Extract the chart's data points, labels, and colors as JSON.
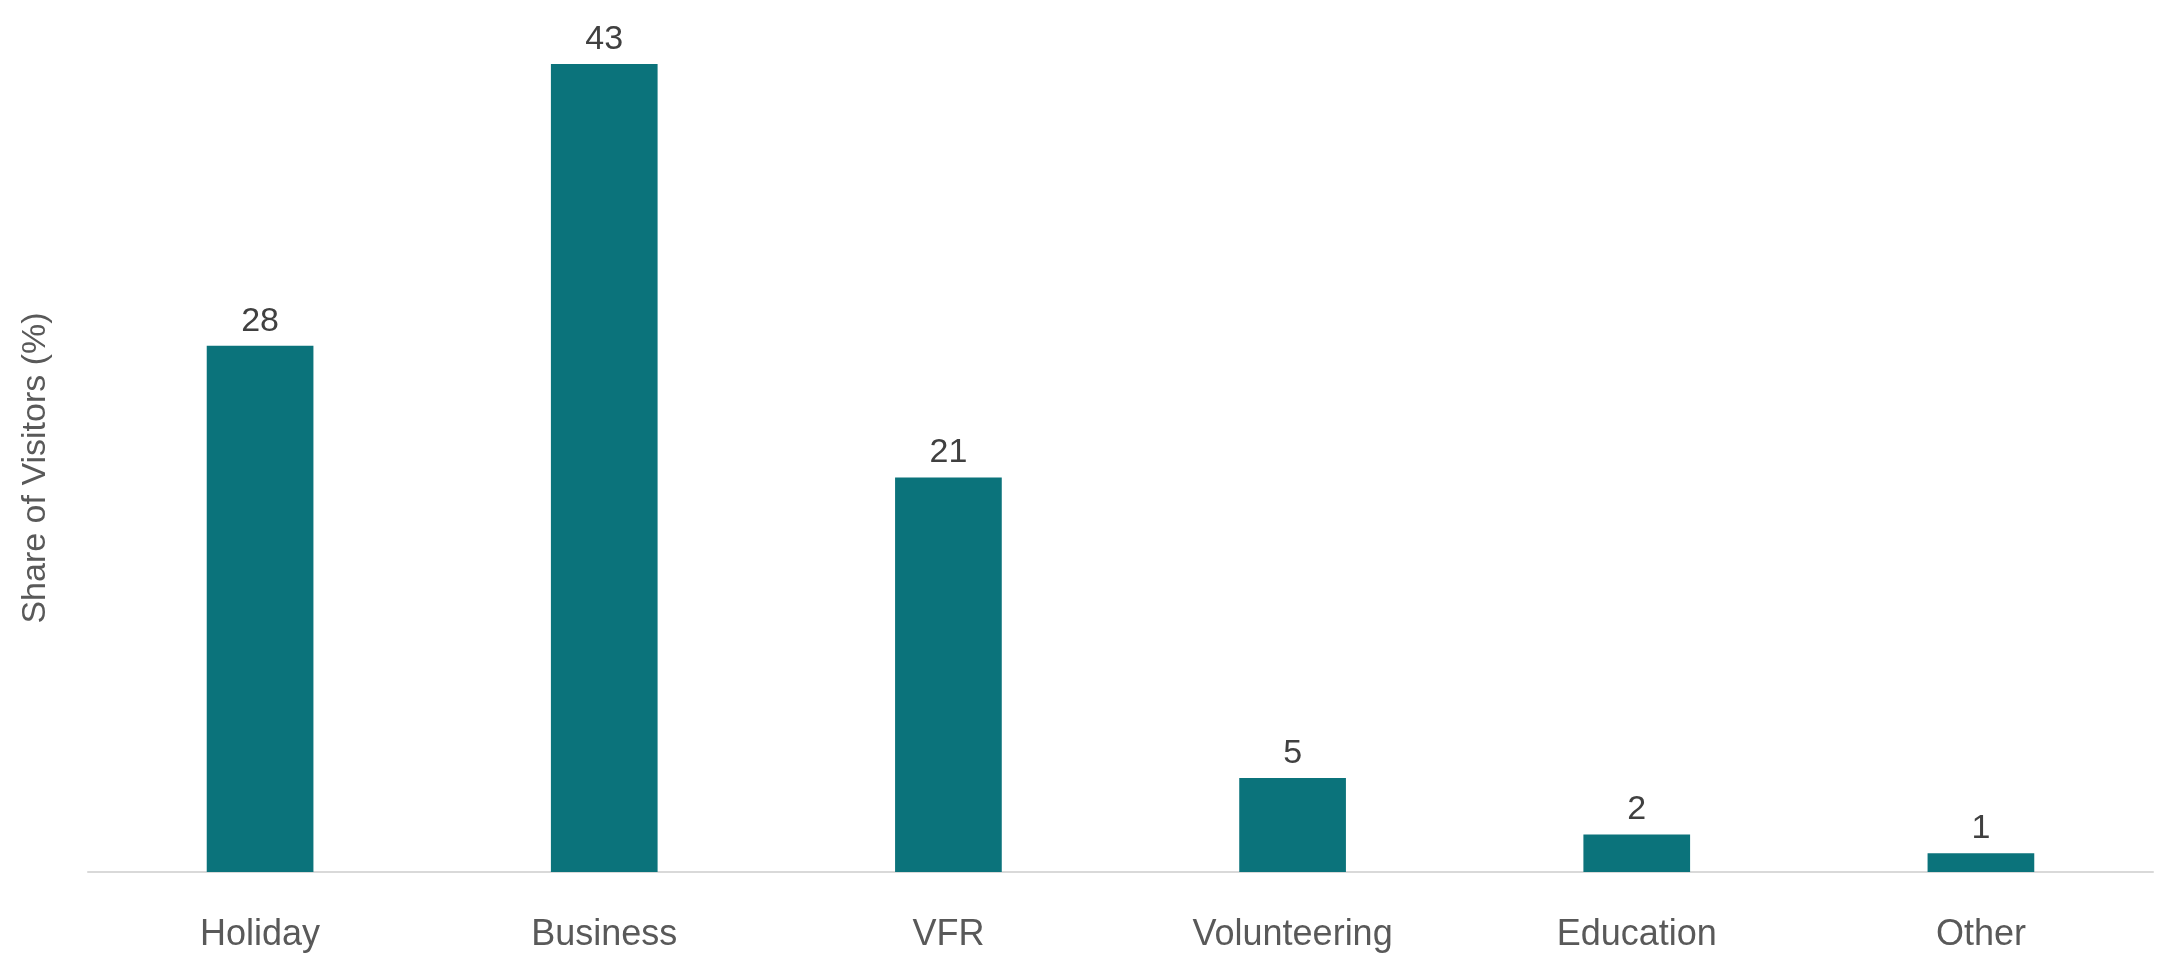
{
  "chart_data": {
    "type": "bar",
    "ylabel": "Share of Visitors (%)",
    "categories": [
      "Holiday",
      "Business",
      "VFR",
      "Volunteering",
      "Education",
      "Other"
    ],
    "values": [
      28,
      43,
      21,
      5,
      2,
      1
    ],
    "color": "#0b737b",
    "data_labels": true,
    "tick_labels": "x"
  }
}
